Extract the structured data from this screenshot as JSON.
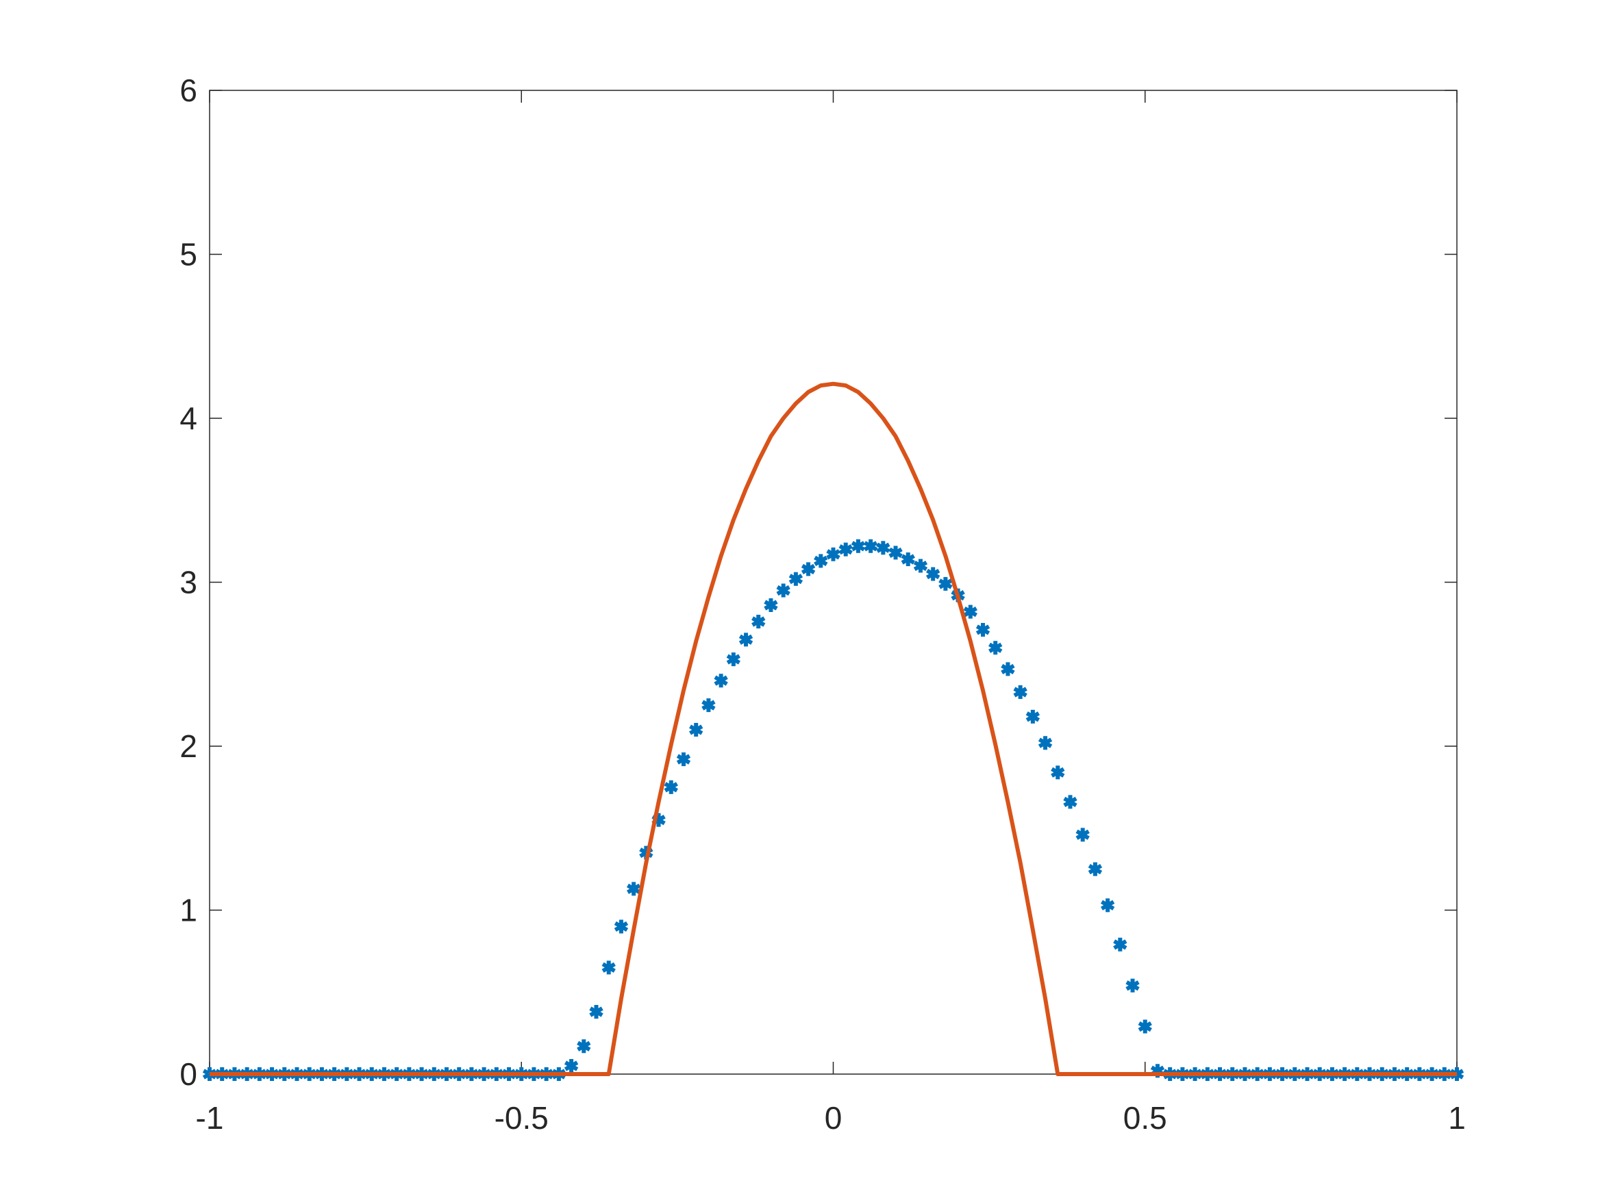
{
  "chart_data": {
    "type": "line",
    "x": [
      -1,
      -0.98,
      -0.96,
      -0.94,
      -0.92,
      -0.9,
      -0.88,
      -0.86,
      -0.84,
      -0.82,
      -0.8,
      -0.78,
      -0.76,
      -0.74,
      -0.72,
      -0.7,
      -0.68,
      -0.66,
      -0.64,
      -0.62,
      -0.6,
      -0.58,
      -0.56,
      -0.54,
      -0.52,
      -0.5,
      -0.48,
      -0.46,
      -0.44,
      -0.42,
      -0.4,
      -0.38,
      -0.36,
      -0.34,
      -0.32,
      -0.3,
      -0.28,
      -0.26,
      -0.24,
      -0.22,
      -0.2,
      -0.18,
      -0.16,
      -0.14,
      -0.12,
      -0.1,
      -0.08,
      -0.06,
      -0.04,
      -0.02,
      0,
      0.02,
      0.04,
      0.06,
      0.08,
      0.1,
      0.12,
      0.14,
      0.16,
      0.18,
      0.2,
      0.22,
      0.24,
      0.26,
      0.28,
      0.3,
      0.32,
      0.34,
      0.36,
      0.38,
      0.4,
      0.42,
      0.44,
      0.46,
      0.48,
      0.5,
      0.52,
      0.54,
      0.56,
      0.58,
      0.6,
      0.62,
      0.64,
      0.66,
      0.68,
      0.7,
      0.72,
      0.74,
      0.76,
      0.78,
      0.8,
      0.82,
      0.84,
      0.86,
      0.88,
      0.9,
      0.92,
      0.94,
      0.96,
      0.98,
      1
    ],
    "series": [
      {
        "color": "#0072BD",
        "style": "marker",
        "values": [
          0,
          0,
          0,
          0,
          0,
          0,
          0,
          0,
          0,
          0,
          0,
          0,
          0,
          0,
          0,
          0,
          0,
          0,
          0,
          0,
          0,
          0,
          0,
          0,
          0,
          0,
          0,
          0,
          0,
          0.05,
          0.17,
          0.38,
          0.65,
          0.9,
          1.13,
          1.35,
          1.55,
          1.75,
          1.92,
          2.1,
          2.25,
          2.4,
          2.53,
          2.65,
          2.76,
          2.86,
          2.95,
          3.02,
          3.08,
          3.13,
          3.17,
          3.2,
          3.22,
          3.22,
          3.21,
          3.18,
          3.14,
          3.1,
          3.05,
          2.99,
          2.92,
          2.82,
          2.71,
          2.6,
          2.47,
          2.33,
          2.18,
          2.02,
          1.84,
          1.66,
          1.46,
          1.25,
          1.03,
          0.79,
          0.54,
          0.29,
          0.02,
          0,
          0,
          0,
          0,
          0,
          0,
          0,
          0,
          0,
          0,
          0,
          0,
          0,
          0,
          0,
          0,
          0,
          0,
          0,
          0,
          0,
          0,
          0,
          0
        ]
      },
      {
        "color": "#D95319",
        "style": "line",
        "values": [
          0,
          0,
          0,
          0,
          0,
          0,
          0,
          0,
          0,
          0,
          0,
          0,
          0,
          0,
          0,
          0,
          0,
          0,
          0,
          0,
          0,
          0,
          0,
          0,
          0,
          0,
          0,
          0,
          0,
          0,
          0,
          0,
          0,
          0.46,
          0.88,
          1.29,
          1.66,
          2.01,
          2.34,
          2.64,
          2.91,
          3.16,
          3.38,
          3.57,
          3.74,
          3.89,
          4.0,
          4.09,
          4.16,
          4.2,
          4.21,
          4.2,
          4.16,
          4.09,
          4.0,
          3.89,
          3.74,
          3.57,
          3.38,
          3.16,
          2.91,
          2.64,
          2.34,
          2.01,
          1.66,
          1.29,
          0.88,
          0.46,
          0,
          0,
          0,
          0,
          0,
          0,
          0,
          0,
          0,
          0,
          0,
          0,
          0,
          0,
          0,
          0,
          0,
          0,
          0,
          0,
          0,
          0,
          0,
          0,
          0,
          0,
          0,
          0,
          0,
          0,
          0,
          0,
          0
        ]
      }
    ],
    "xlim": [
      -1,
      1
    ],
    "ylim": [
      0,
      6
    ],
    "xticks": [
      -1,
      -0.5,
      0,
      0.5,
      1
    ],
    "yticks": [
      0,
      1,
      2,
      3,
      4,
      5,
      6
    ],
    "grid": false
  }
}
